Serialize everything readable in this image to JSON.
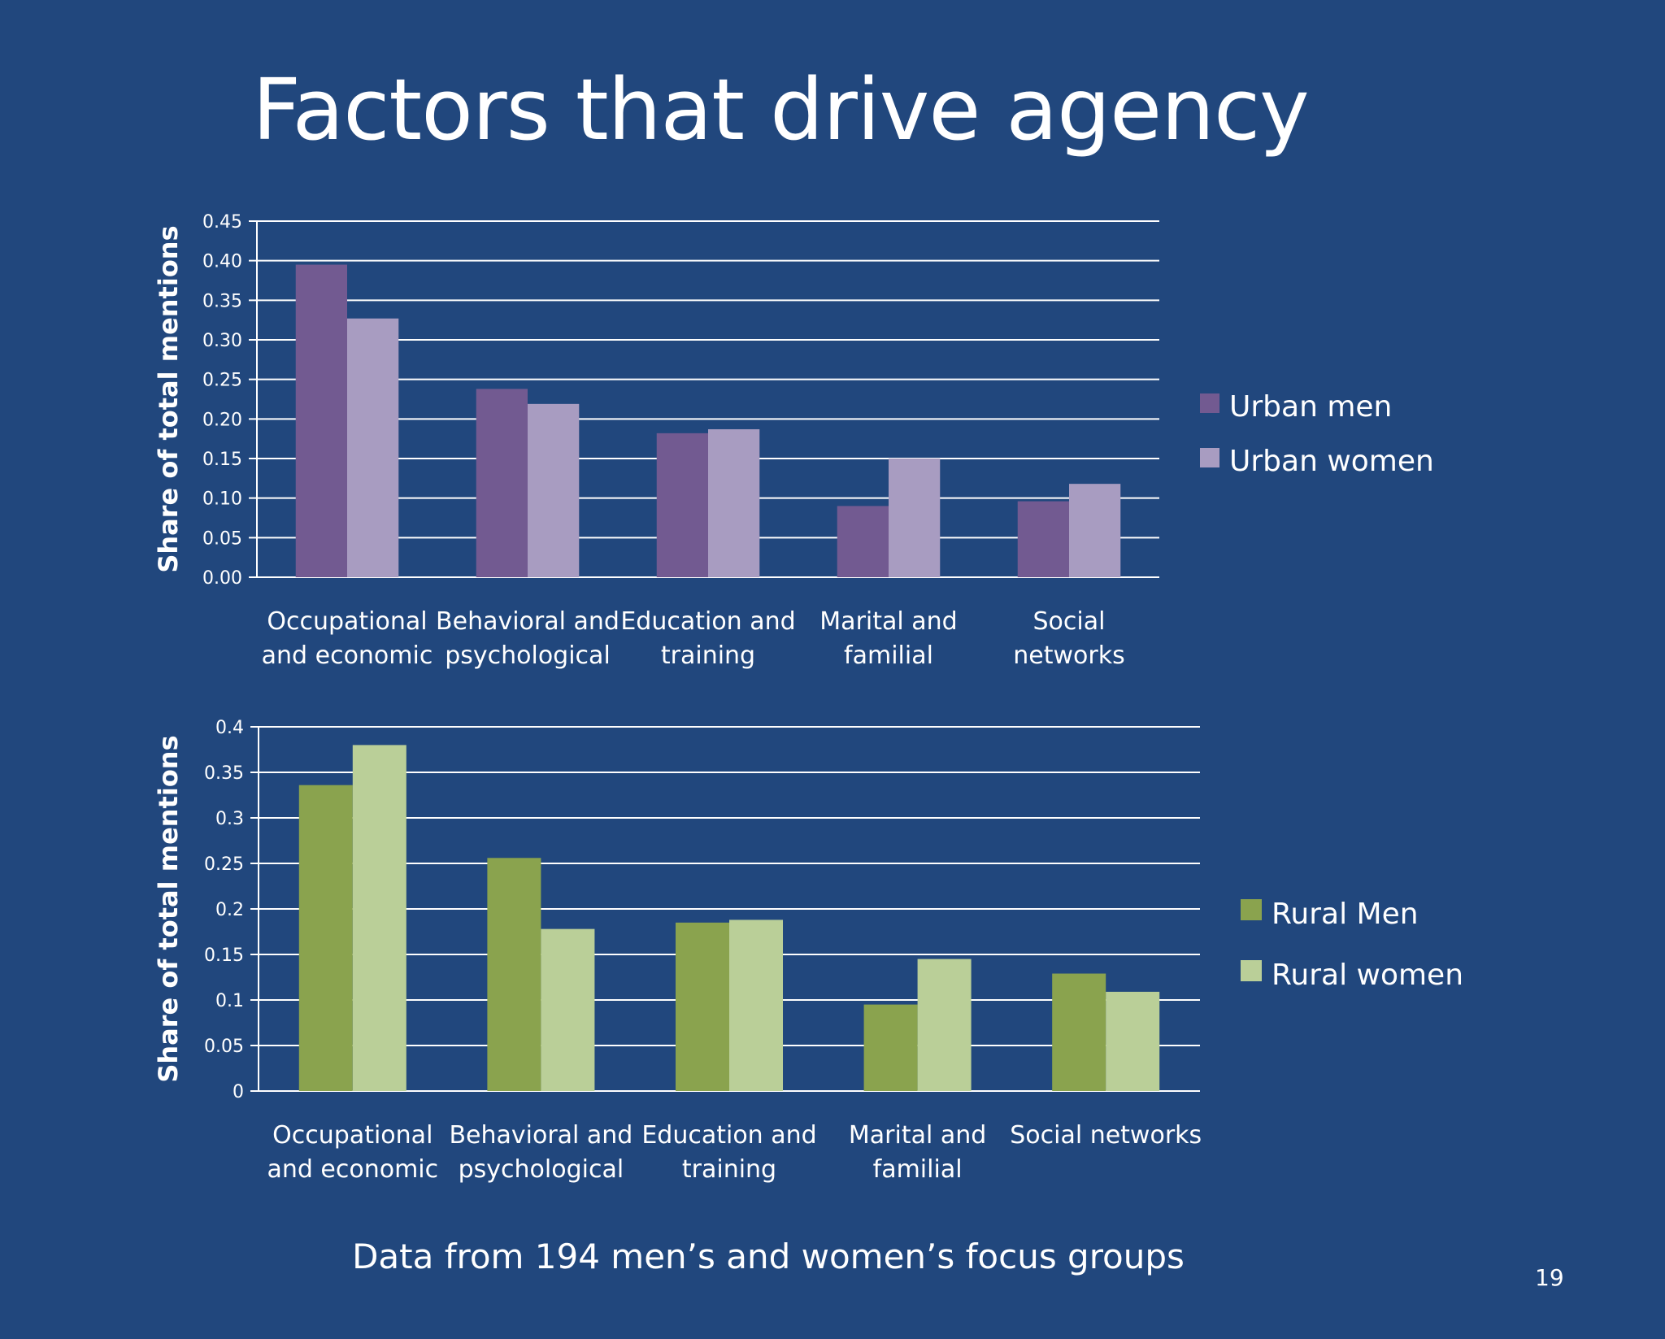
{
  "slide": {
    "title": "Factors that drive agency",
    "footer": "Data from 194 men’s and women’s focus groups",
    "page_number": "19"
  },
  "chart_data": [
    {
      "type": "bar",
      "title": "",
      "xlabel": "",
      "ylabel": "Share of total mentions",
      "categories": [
        [
          "Occupational",
          "and economic"
        ],
        [
          "Behavioral and",
          "psychological"
        ],
        [
          "Education and",
          "training"
        ],
        [
          "Marital and",
          "familial"
        ],
        [
          "Social",
          "networks"
        ]
      ],
      "series": [
        {
          "name": "Urban men",
          "color": "#725a91",
          "values": [
            0.395,
            0.238,
            0.182,
            0.09,
            0.096
          ]
        },
        {
          "name": "Urban women",
          "color": "#a89cc1",
          "values": [
            0.327,
            0.219,
            0.187,
            0.15,
            0.118
          ]
        }
      ],
      "ylim": [
        0,
        0.45
      ],
      "yticks": [
        "0.00",
        "0.05",
        "0.10",
        "0.15",
        "0.20",
        "0.25",
        "0.30",
        "0.35",
        "0.40",
        "0.45"
      ],
      "grid": true,
      "legend": "right"
    },
    {
      "type": "bar",
      "title": "",
      "xlabel": "",
      "ylabel": "Share of total mentions",
      "categories": [
        [
          "Occupational",
          "and economic"
        ],
        [
          "Behavioral and",
          "psychological"
        ],
        [
          "Education and",
          "training"
        ],
        [
          "Marital and",
          "familial"
        ],
        [
          "Social networks"
        ]
      ],
      "series": [
        {
          "name": "Rural Men",
          "color": "#8aa34e",
          "values": [
            0.336,
            0.256,
            0.185,
            0.095,
            0.129
          ]
        },
        {
          "name": "Rural women",
          "color": "#bacf98",
          "values": [
            0.38,
            0.178,
            0.188,
            0.145,
            0.109
          ]
        }
      ],
      "ylim": [
        0,
        0.4
      ],
      "yticks": [
        "0",
        "0.05",
        "0.1",
        "0.15",
        "0.2",
        "0.25",
        "0.3",
        "0.35",
        "0.4"
      ],
      "grid": true,
      "legend": "right"
    }
  ]
}
